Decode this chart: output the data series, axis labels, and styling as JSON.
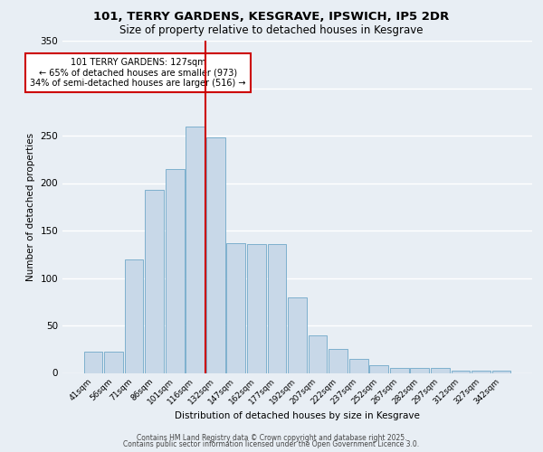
{
  "title_line1": "101, TERRY GARDENS, KESGRAVE, IPSWICH, IP5 2DR",
  "title_line2": "Size of property relative to detached houses in Kesgrave",
  "xlabel": "Distribution of detached houses by size in Kesgrave",
  "ylabel": "Number of detached properties",
  "bar_labels": [
    "41sqm",
    "56sqm",
    "71sqm",
    "86sqm",
    "101sqm",
    "116sqm",
    "132sqm",
    "147sqm",
    "162sqm",
    "177sqm",
    "192sqm",
    "207sqm",
    "222sqm",
    "237sqm",
    "252sqm",
    "267sqm",
    "282sqm",
    "297sqm",
    "312sqm",
    "327sqm",
    "342sqm"
  ],
  "bar_values": [
    22,
    22,
    120,
    193,
    215,
    260,
    248,
    137,
    136,
    136,
    80,
    40,
    25,
    15,
    8,
    5,
    5,
    5,
    2,
    2,
    2
  ],
  "bar_color": "#c8d8e8",
  "bar_edgecolor": "#6fa8c8",
  "vline_color": "#cc0000",
  "annotation_text": "101 TERRY GARDENS: 127sqm\n← 65% of detached houses are smaller (973)\n34% of semi-detached houses are larger (516) →",
  "annotation_box_color": "#ffffff",
  "annotation_box_edgecolor": "#cc0000",
  "ylim": [
    0,
    350
  ],
  "yticks": [
    0,
    50,
    100,
    150,
    200,
    250,
    300,
    350
  ],
  "footer_line1": "Contains HM Land Registry data © Crown copyright and database right 2025.",
  "footer_line2": "Contains public sector information licensed under the Open Government Licence 3.0.",
  "bg_color": "#e8eef4",
  "plot_bg_color": "#e8eef4",
  "grid_color": "#ffffff"
}
